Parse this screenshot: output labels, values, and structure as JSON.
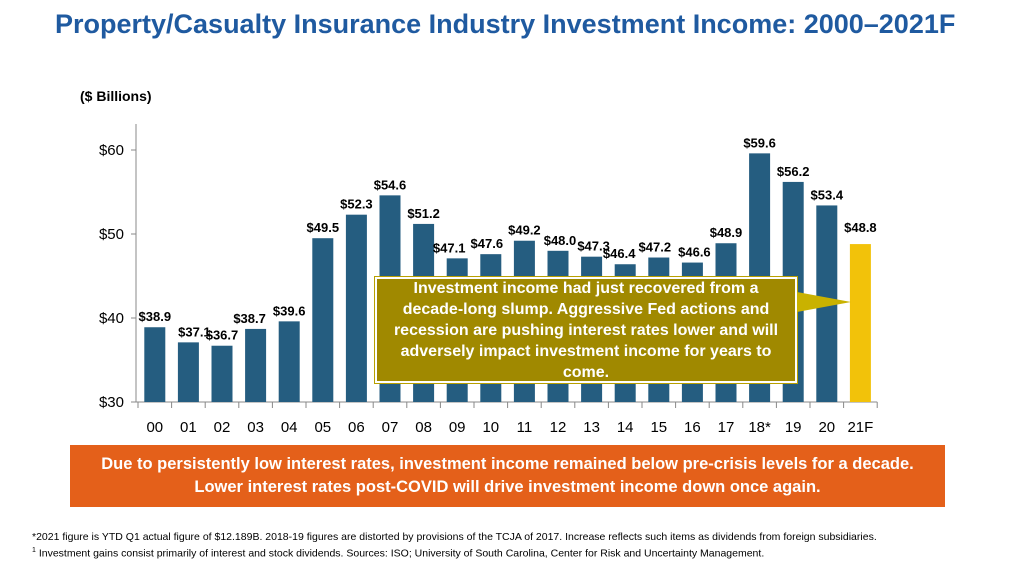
{
  "header": {
    "title": "Property/Casualty Insurance Industry Investment Income: 2000–2021F",
    "subtitle": "($ Billions)"
  },
  "colors": {
    "title": "#1f5aa0",
    "bar": "#255d80",
    "highlight_bar": "#f2c20a",
    "callout_bg": "#a08900",
    "banner_bg": "#e4601a"
  },
  "chart_data": {
    "type": "bar",
    "title": "Property/Casualty Insurance Industry Investment Income: 2000–2021F",
    "ylabel": "$ Billions",
    "xlabel": "",
    "ylim": [
      30,
      63
    ],
    "yticks": [
      30,
      40,
      50,
      60
    ],
    "ytick_labels": [
      "$30",
      "$40",
      "$50",
      "$60"
    ],
    "categories": [
      "00",
      "01",
      "02",
      "03",
      "04",
      "05",
      "06",
      "07",
      "08",
      "09",
      "10",
      "11",
      "12",
      "13",
      "14",
      "15",
      "16",
      "17",
      "18*",
      "19",
      "20",
      "21F"
    ],
    "values": [
      38.9,
      37.1,
      36.7,
      38.7,
      39.6,
      49.5,
      52.3,
      54.6,
      51.2,
      47.1,
      47.6,
      49.2,
      48.0,
      47.3,
      46.4,
      47.2,
      46.6,
      48.9,
      59.6,
      56.2,
      53.4,
      48.8
    ],
    "value_labels": [
      "$38.9",
      "$37.1",
      "$36.7",
      "$38.7",
      "$39.6",
      "$49.5",
      "$52.3",
      "$54.6",
      "$51.2",
      "$47.1",
      "$47.6",
      "$49.2",
      "$48.0",
      "$47.3",
      "$46.4",
      "$47.2",
      "$46.6",
      "$48.9",
      "$59.6",
      "$56.2",
      "$53.4",
      "$48.8"
    ],
    "highlight_index": 21,
    "grid": false
  },
  "callout": {
    "text": "Investment income had just recovered from a decade-long slump.  Aggressive Fed actions and recession are pushing interest rates lower and will adversely impact investment income for years to come."
  },
  "banner": {
    "text": "Due to persistently low interest rates, investment income remained below pre-crisis levels for a decade.  Lower interest rates post-COVID will drive investment income down once again."
  },
  "footnotes": {
    "note1": "*2021 figure is YTD Q1 actual figure of $12.189B.  2018-19 figures are distorted by provisions of the TCJA of 2017.  Increase reflects such items as dividends from foreign subsidiaries.",
    "note2_marker": "1",
    "note2": " Investment gains consist primarily of interest and stock dividends. Sources: ISO; University of South Carolina, Center for Risk and Uncertainty Management."
  }
}
